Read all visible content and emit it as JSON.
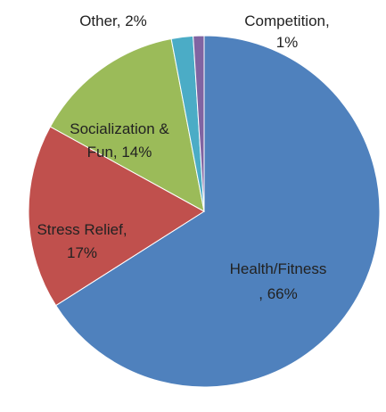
{
  "chart_data": {
    "type": "pie",
    "title": "",
    "legend": "none",
    "slices": [
      {
        "id": "health",
        "name": "Health/Fitness",
        "value": 66,
        "color": "#4F81BD",
        "label_lines": [
          "Health/Fitness",
          ", 66%"
        ]
      },
      {
        "id": "stress",
        "name": "Stress Relief",
        "value": 17,
        "color": "#C0504D",
        "label_lines": [
          "Stress Relief,",
          "17%"
        ]
      },
      {
        "id": "social",
        "name": "Socialization & Fun",
        "value": 14,
        "color": "#9BBB59",
        "label_lines": [
          "Socialization &",
          "Fun, 14%"
        ]
      },
      {
        "id": "competition",
        "name": "Competition",
        "value": 1,
        "color": "#8064A2",
        "label_lines": [
          "Competition,",
          "1%"
        ]
      },
      {
        "id": "other",
        "name": "Other",
        "value": 2,
        "color": "#4BACC6",
        "label_lines": [
          "Other, 2%"
        ]
      }
    ]
  }
}
